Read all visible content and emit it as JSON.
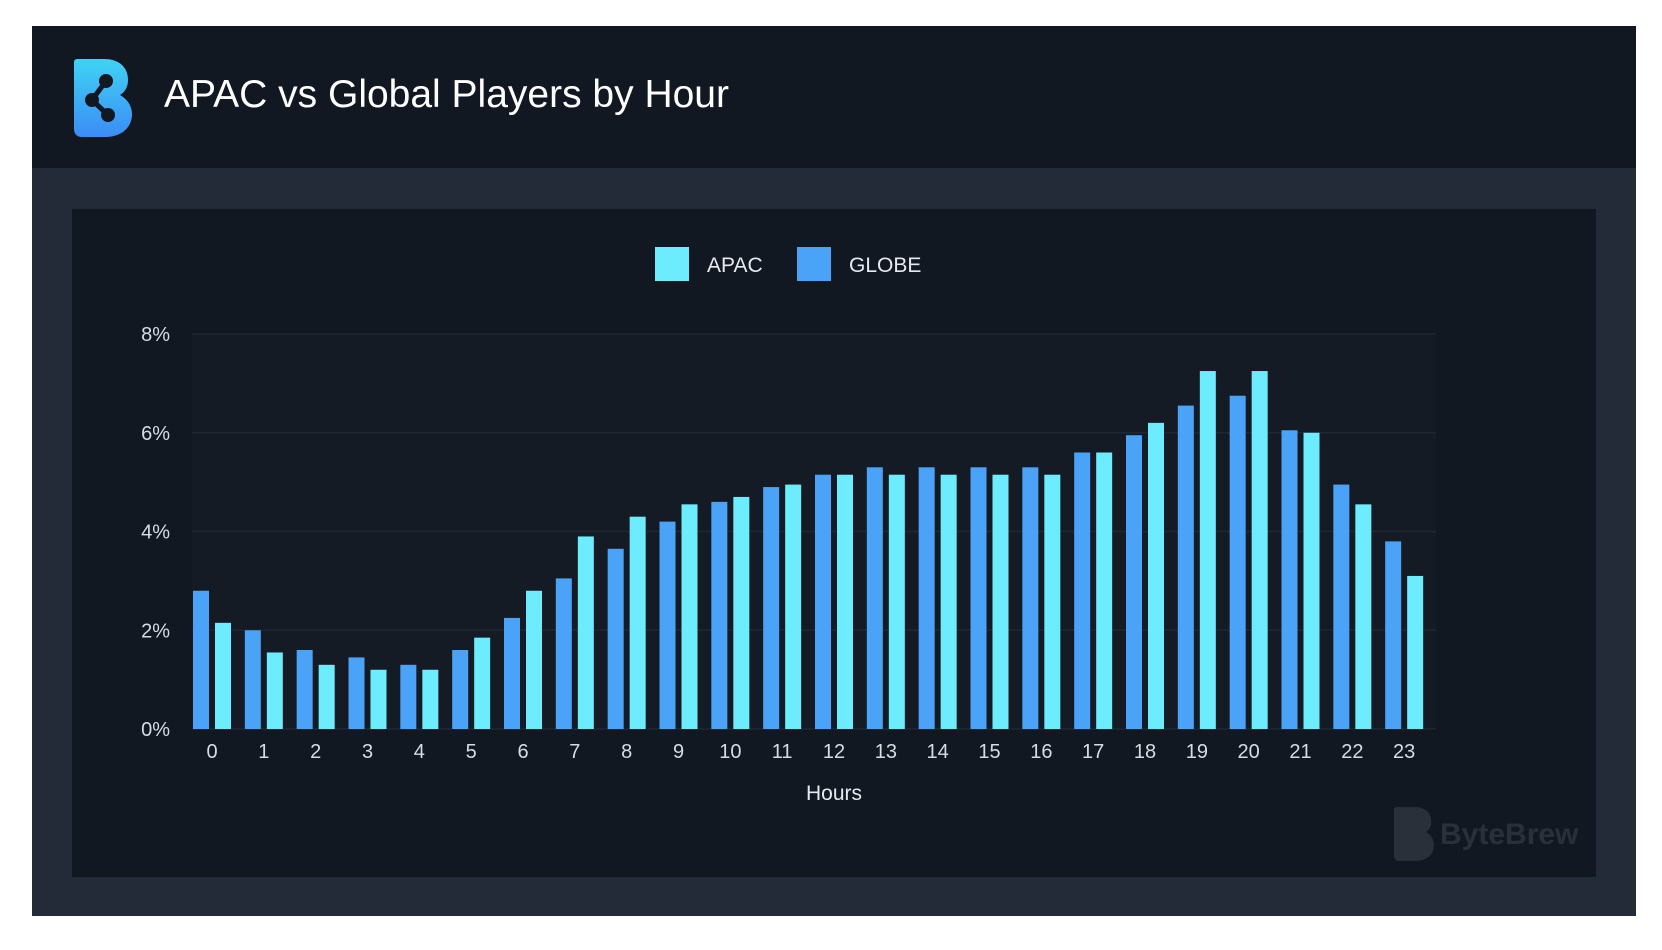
{
  "header": {
    "title": "APAC vs Global Players by Hour",
    "logo": "bytebrew-logo-icon"
  },
  "watermark": {
    "text": "ByteBrew"
  },
  "colors": {
    "apac": "#6cecfc",
    "globe": "#4aa3f7",
    "panel_bg": "#121822",
    "frame_bg": "#222b37",
    "grid": "#1f2733",
    "plot_bg": "#151b25"
  },
  "chart_data": {
    "type": "bar",
    "categories": [
      "0",
      "1",
      "2",
      "3",
      "4",
      "5",
      "6",
      "7",
      "8",
      "9",
      "10",
      "11",
      "12",
      "13",
      "14",
      "15",
      "16",
      "17",
      "18",
      "19",
      "20",
      "21",
      "22",
      "23"
    ],
    "series": [
      {
        "name": "GLOBE",
        "values": [
          2.8,
          2.0,
          1.6,
          1.45,
          1.3,
          1.6,
          2.25,
          3.05,
          3.65,
          4.2,
          4.6,
          4.9,
          5.15,
          5.3,
          5.3,
          5.3,
          5.3,
          5.6,
          5.95,
          6.55,
          6.75,
          6.05,
          4.95,
          3.8
        ]
      },
      {
        "name": "APAC",
        "values": [
          2.15,
          1.55,
          1.3,
          1.2,
          1.2,
          1.85,
          2.8,
          3.9,
          4.3,
          4.55,
          4.7,
          4.95,
          5.15,
          5.15,
          5.15,
          5.15,
          5.15,
          5.6,
          6.2,
          7.25,
          7.25,
          6.0,
          4.55,
          3.1
        ]
      }
    ],
    "legend": [
      "APAC",
      "GLOBE"
    ],
    "legend_position": "top-center",
    "xlabel": "Hours",
    "ylabel": "",
    "yticks": [
      "0%",
      "2%",
      "4%",
      "6%",
      "8%"
    ],
    "ylim": [
      0,
      8
    ],
    "grid": true
  }
}
